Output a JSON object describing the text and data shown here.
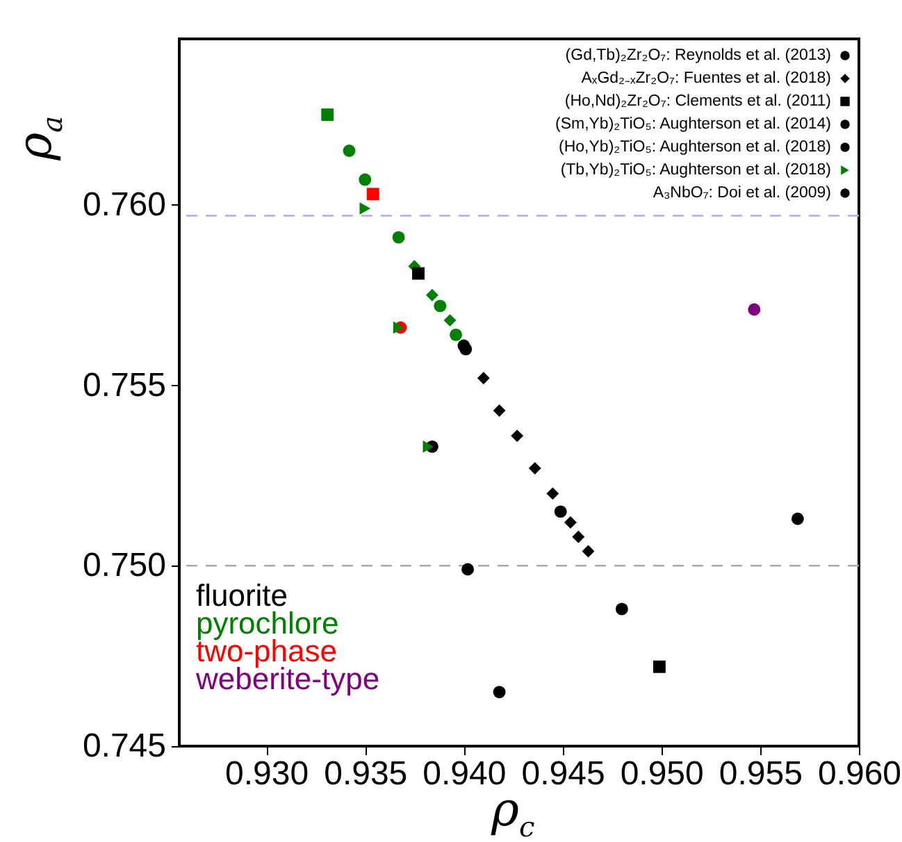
{
  "chart_data": {
    "type": "scatter",
    "xlabel": "ρ$_{c}$",
    "ylabel": "ρ$_{a}$",
    "xlim": [
      0.9256,
      0.96
    ],
    "xticks": [
      {
        "value": 0.93,
        "label": "0.930"
      },
      0.935,
      {
        "value": 0.94,
        "label": "0.940"
      },
      0.945,
      {
        "value": 0.95,
        "label": "0.950"
      },
      0.955,
      {
        "value": 0.96,
        "label": "0.960"
      }
    ],
    "ylim": [
      0.745,
      0.7646
    ],
    "yticks": [
      0.745,
      {
        "value": 0.75,
        "label": "0.750"
      },
      0.755,
      {
        "value": 0.76,
        "label": "0.760"
      }
    ],
    "legend": "top right",
    "ref_lines": [
      {
        "axis": "y",
        "value": 0.7597,
        "color": "#aaaaff",
        "line_style": "dashed"
      },
      {
        "axis": "y",
        "value": 0.75,
        "color": "#aaaaaa",
        "line_style": "dashed"
      }
    ],
    "series": [
      {
        "color": "#008000",
        "marker": "diamond",
        "x": [
          0.9375,
          0.9384,
          0.9393
        ],
        "values": [
          0.7583,
          0.7575,
          0.7568
        ]
      },
      {
        "color": "#008000",
        "marker": "square",
        "x": [
          0.9331
        ],
        "values": [
          0.7625
        ]
      },
      {
        "color": "#ff0000",
        "marker": "square",
        "x": [
          0.9354
        ],
        "values": [
          0.7603
        ]
      },
      {
        "color": "#ff0000",
        "marker": "circle",
        "x": [
          0.9368
        ],
        "values": [
          0.7566
        ]
      },
      {
        "color": "#800080",
        "marker": "circle",
        "x": [
          0.9547
        ],
        "values": [
          0.7571
        ]
      },
      {
        "name": "(Gd,Tb)₂Zr₂O₇: Reynolds et al. (2013)",
        "color": "#000000",
        "marker": "circle",
        "x": [
          0.94
        ],
        "values": [
          0.7561
        ]
      },
      {
        "name": "AₓGd₂₋ₓZr₂O₇: Fuentes et al. (2018)",
        "color": "#000000",
        "marker": "diamond",
        "x": [
          0.941,
          0.9418,
          0.9427,
          0.9436,
          0.9445,
          0.9454,
          0.9458,
          0.9463
        ],
        "values": [
          0.7552,
          0.7543,
          0.7536,
          0.7527,
          0.752,
          0.7512,
          0.7508,
          0.7504
        ]
      },
      {
        "name": "(Ho,Nd)₂Zr₂O₇: Clements et al. (2011)",
        "color": "#000000",
        "marker": "square",
        "x": [
          0.9377,
          0.9499
        ],
        "values": [
          0.7581,
          0.7472
        ]
      },
      {
        "name": "(Sm,Yb)₂TiO₅: Aughterson et al. (2014)",
        "color": "#000000",
        "marker": "circle",
        "x": [
          0.9401,
          0.9449
        ],
        "values": [
          0.756,
          0.7515
        ]
      },
      {
        "name": "(Ho,Yb)₂TiO₅: Aughterson et al. (2018)",
        "color": "#000000",
        "marker": "circle",
        "x": [
          0.9384,
          0.9402,
          0.9418
        ],
        "values": [
          0.7533,
          0.7499,
          0.7465
        ]
      },
      {
        "name": "(Tb,Yb)₂TiO₅: Aughterson et al. (2018)",
        "color": "#008000",
        "marker": "triangle-right",
        "x": [
          0.935,
          0.9367,
          0.9382
        ],
        "values": [
          0.7599,
          0.7566,
          0.7533
        ]
      },
      {
        "name": "A₃NbO₇: Doi et al. (2009)",
        "color": "#000000",
        "marker": "circle",
        "x": [
          0.948,
          0.9569
        ],
        "values": [
          0.7488,
          0.7513
        ]
      },
      {
        "color": "#008000",
        "marker": "circle",
        "x": [
          0.9342,
          0.935,
          0.9367,
          0.9388,
          0.9396
        ],
        "values": [
          0.7615,
          0.7607,
          0.7591,
          0.7572,
          0.7564
        ]
      },
      {
        "name": "fluorite",
        "color": "#000000"
      },
      {
        "name": "pyrochlore",
        "color": "#008000"
      },
      {
        "name": "two-phase",
        "color": "#ff0000"
      },
      {
        "name": "weberite-type",
        "color": "#800080"
      }
    ]
  }
}
